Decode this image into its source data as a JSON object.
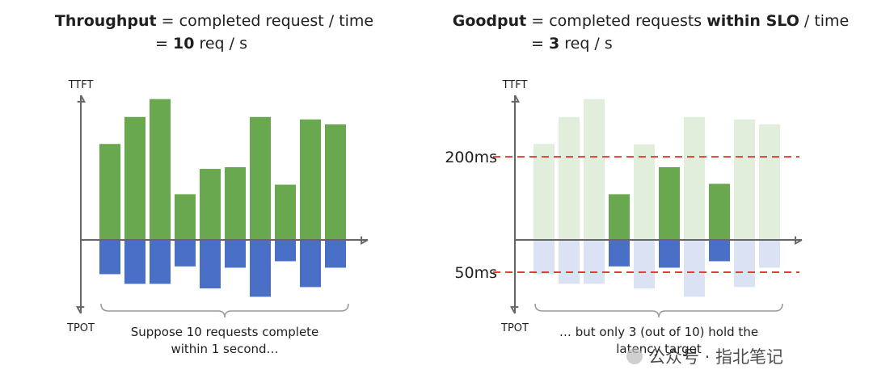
{
  "chart_data": [
    {
      "type": "bar",
      "title": [
        {
          "text": "Throughput",
          "bold": true
        },
        {
          "text": " = completed request / time"
        }
      ],
      "subtitle": [
        {
          "text": "= "
        },
        {
          "text": "10",
          "bold": true
        },
        {
          "text": " req / s"
        }
      ],
      "y_label": "TTFT",
      "y2_label": "TPOT",
      "ylim": [
        0,
        350
      ],
      "y2lim": [
        0,
        100
      ],
      "series": [
        {
          "color": "#6aa84f",
          "values": [
            231,
            296,
            339,
            110,
            171,
            175,
            296,
            133,
            290,
            278
          ]
        },
        {
          "color": "#4a6fc6",
          "axis": "y2",
          "values": [
            53,
            68,
            68,
            41,
            75,
            43,
            88,
            33,
            73,
            43
          ]
        }
      ],
      "caption": [
        "Suppose 10 requests complete",
        "within 1 second…"
      ]
    },
    {
      "type": "bar",
      "title": [
        {
          "text": "Goodput",
          "bold": true
        },
        {
          "text": " = completed requests "
        },
        {
          "text": "within SLO",
          "bold": true
        },
        {
          "text": " / time"
        }
      ],
      "subtitle": [
        {
          "text": "= "
        },
        {
          "text": "3",
          "bold": true
        },
        {
          "text": " req / s"
        }
      ],
      "y_label": "TTFT",
      "y2_label": "TPOT",
      "ylim": [
        0,
        350
      ],
      "y2lim": [
        0,
        100
      ],
      "yticks": [
        {
          "value": 200,
          "label": "200ms"
        }
      ],
      "y2ticks": [
        {
          "value": 50,
          "label": "50ms"
        }
      ],
      "tick_color": "#d9433b",
      "series": [
        {
          "color": "#6aa84f",
          "values": [
            231,
            296,
            339,
            110,
            230,
            175,
            296,
            135,
            290,
            278
          ]
        },
        {
          "color": "#4a6fc6",
          "axis": "y2",
          "values": [
            53,
            68,
            68,
            41,
            75,
            43,
            88,
            33,
            73,
            43
          ]
        }
      ],
      "caption": [
        "… but only 3 (out of 10) hold the",
        "latency target"
      ]
    }
  ],
  "watermark": "公众号 · 指北笔记"
}
